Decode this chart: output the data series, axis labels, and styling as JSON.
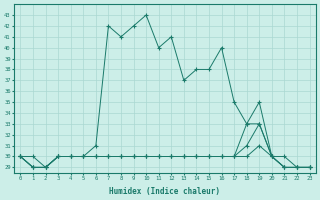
{
  "xlabel": "Humidex (Indice chaleur)",
  "x": [
    0,
    1,
    2,
    3,
    4,
    5,
    6,
    7,
    8,
    9,
    10,
    11,
    12,
    13,
    14,
    15,
    16,
    17,
    18,
    19,
    20,
    21,
    22,
    23
  ],
  "series": [
    [
      30,
      30,
      29,
      30,
      30,
      30,
      31,
      42,
      41,
      42,
      43,
      40,
      41,
      37,
      38,
      38,
      40,
      35,
      33,
      33,
      30,
      30,
      29,
      29
    ],
    [
      30,
      29,
      29,
      30,
      30,
      30,
      30,
      30,
      30,
      30,
      30,
      30,
      30,
      30,
      30,
      30,
      30,
      30,
      30,
      31,
      30,
      29,
      29,
      29
    ],
    [
      30,
      29,
      29,
      30,
      30,
      30,
      30,
      30,
      30,
      30,
      30,
      30,
      30,
      30,
      30,
      30,
      30,
      30,
      31,
      33,
      30,
      29,
      29,
      29
    ],
    [
      30,
      29,
      29,
      30,
      30,
      30,
      30,
      30,
      30,
      30,
      30,
      30,
      30,
      30,
      30,
      30,
      30,
      30,
      33,
      35,
      30,
      29,
      29,
      29
    ]
  ],
  "line_color": "#1a7a6a",
  "marker": "+",
  "bg_color": "#cceee8",
  "grid_color": "#aad8d2",
  "tick_color": "#1a7a6a",
  "ylim": [
    28.5,
    44
  ],
  "yticks": [
    29,
    30,
    31,
    32,
    33,
    34,
    35,
    36,
    37,
    38,
    39,
    40,
    41,
    42,
    43
  ],
  "xticks": [
    0,
    1,
    2,
    3,
    4,
    5,
    6,
    7,
    8,
    9,
    10,
    11,
    12,
    13,
    14,
    15,
    16,
    17,
    18,
    19,
    20,
    21,
    22,
    23
  ]
}
